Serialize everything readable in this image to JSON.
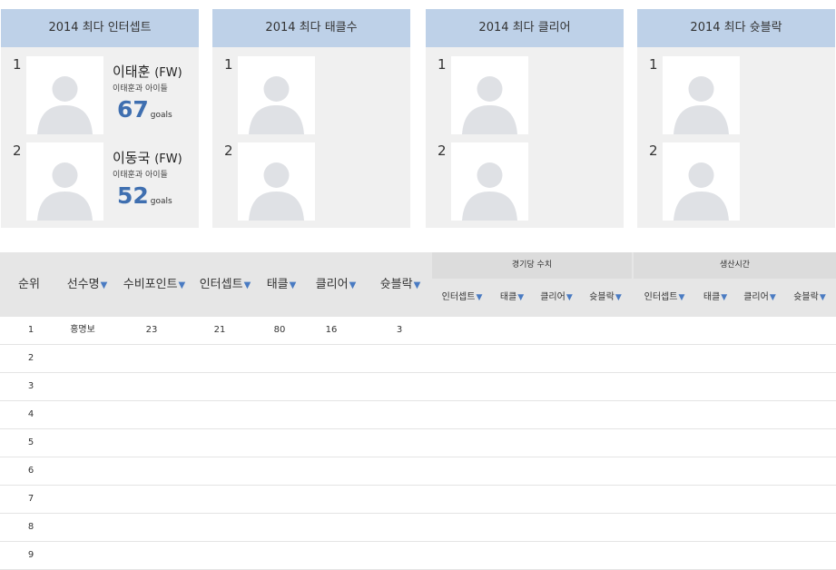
{
  "cards": [
    {
      "title": "2014 최다 인터셉트",
      "slots": [
        {
          "rank": "1",
          "name": "이태훈",
          "position": "(FW)",
          "team": "이태훈과 아이들",
          "goals": "67",
          "unit": "goals"
        },
        {
          "rank": "2",
          "name": "이동국",
          "position": "(FW)",
          "team": "이태훈과 아이들",
          "goals": "52",
          "unit": "goals"
        }
      ]
    },
    {
      "title": "2014 최다 태클수",
      "slots": [
        {
          "rank": "1"
        },
        {
          "rank": "2"
        }
      ]
    },
    {
      "title": "2014 최다 클리어",
      "slots": [
        {
          "rank": "1"
        },
        {
          "rank": "2"
        }
      ]
    },
    {
      "title": "2014 최다 슛블락",
      "slots": [
        {
          "rank": "1"
        },
        {
          "rank": "2"
        }
      ]
    }
  ],
  "table": {
    "headers": {
      "rank": "순위",
      "player": "선수명",
      "points": "수비포인트",
      "intercept": "인터셉트",
      "tackle": "태클",
      "clear": "클리어",
      "block": "슛블락"
    },
    "groups": {
      "per_game": "경기당 수치",
      "play_time": "생산시간"
    },
    "sub_headers": {
      "intercept": "인터셉트",
      "tackle": "태클",
      "clear": "클리어",
      "block": "슛블락"
    },
    "sort_arrow": "▼",
    "rows": [
      {
        "rank": "1",
        "player": "홍명보",
        "points": "23",
        "intercept": "21",
        "tackle": "80",
        "clear": "16",
        "block": "3"
      },
      {
        "rank": "2"
      },
      {
        "rank": "3"
      },
      {
        "rank": "4"
      },
      {
        "rank": "5"
      },
      {
        "rank": "6"
      },
      {
        "rank": "7"
      },
      {
        "rank": "8"
      },
      {
        "rank": "9"
      }
    ]
  }
}
